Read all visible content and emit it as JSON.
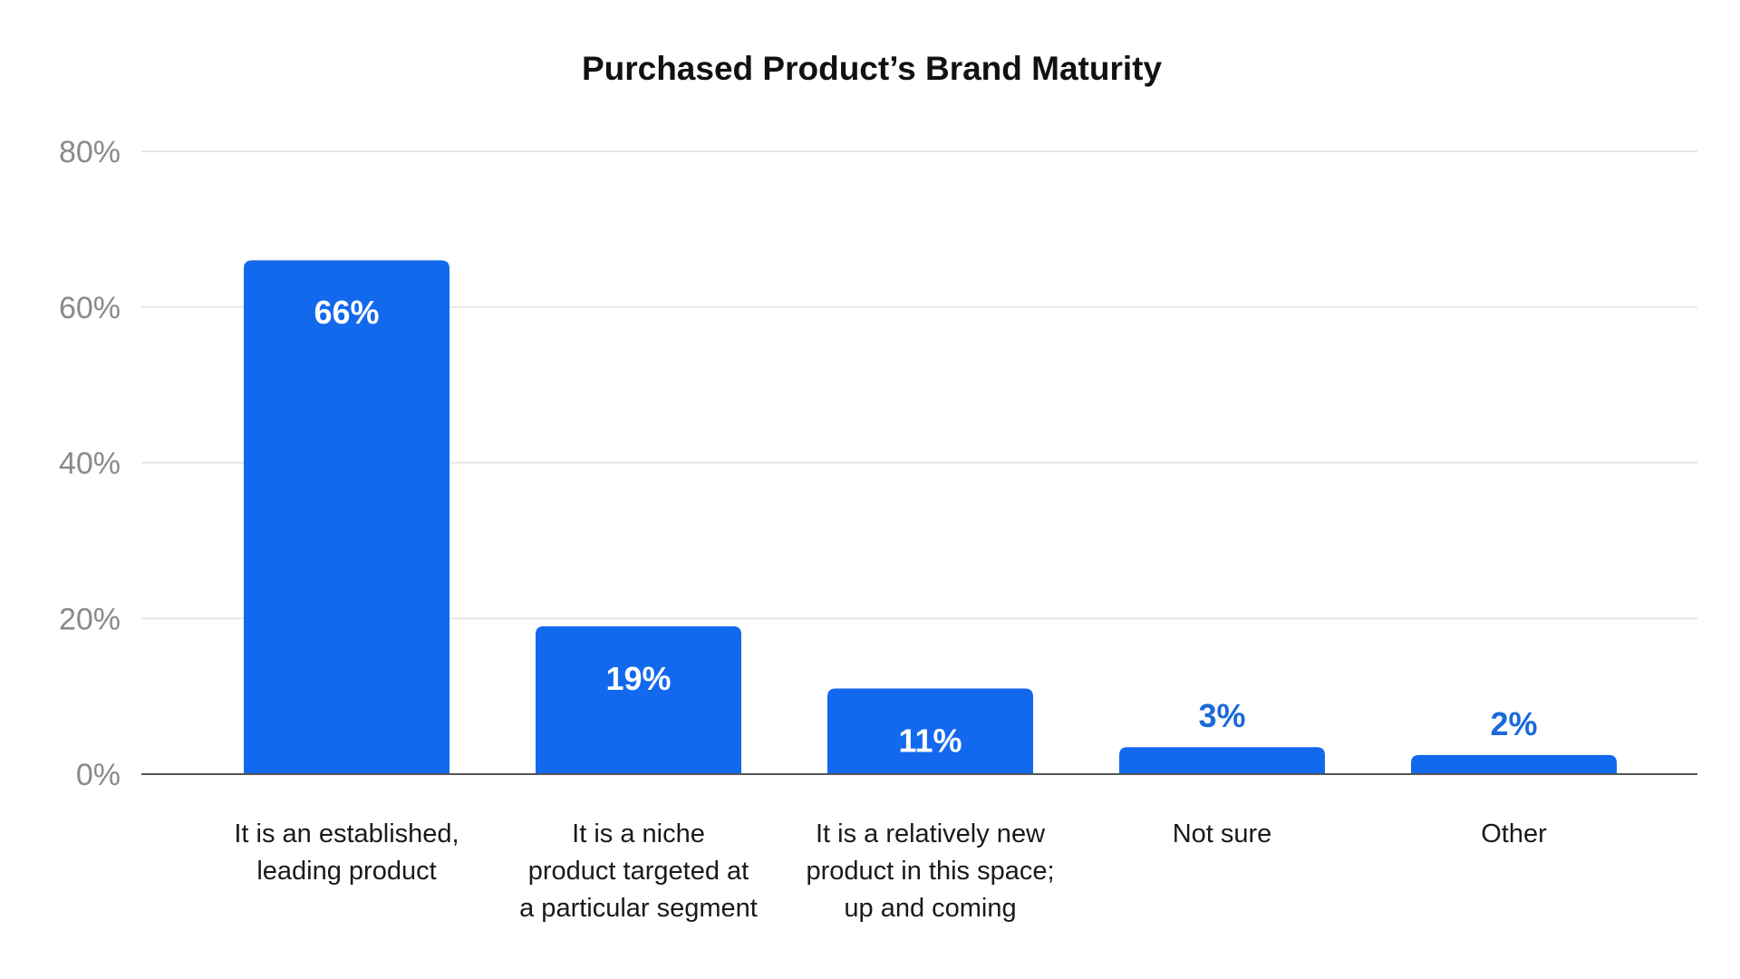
{
  "chart_data": {
    "type": "bar",
    "title": "Purchased Product’s Brand Maturity",
    "xlabel": "",
    "ylabel": "",
    "ylim": [
      0,
      80
    ],
    "yticks": [
      0,
      20,
      40,
      60,
      80
    ],
    "ytick_labels": [
      "0%",
      "20%",
      "40%",
      "60%",
      "80%"
    ],
    "grid": true,
    "legend": "none",
    "categories": [
      [
        "It is an established,",
        "leading product"
      ],
      [
        "It is a niche",
        "product targeted at",
        "a particular segment"
      ],
      [
        "It is a relatively new",
        "product in this space;",
        "up and coming"
      ],
      [
        "Not sure"
      ],
      [
        "Other"
      ]
    ],
    "values": [
      66,
      19,
      11,
      3,
      2
    ],
    "data_labels": [
      "66%",
      "19%",
      "11%",
      "3%",
      "2%"
    ],
    "label_position": [
      "inside",
      "inside",
      "inside",
      "outside",
      "outside"
    ],
    "colors": {
      "bar": "#1369EE",
      "label_inside": "#FFFFFF",
      "label_outside": "#1A6AD8",
      "grid": "#E6E6E6",
      "tick_text": "#8A8A8A"
    }
  }
}
